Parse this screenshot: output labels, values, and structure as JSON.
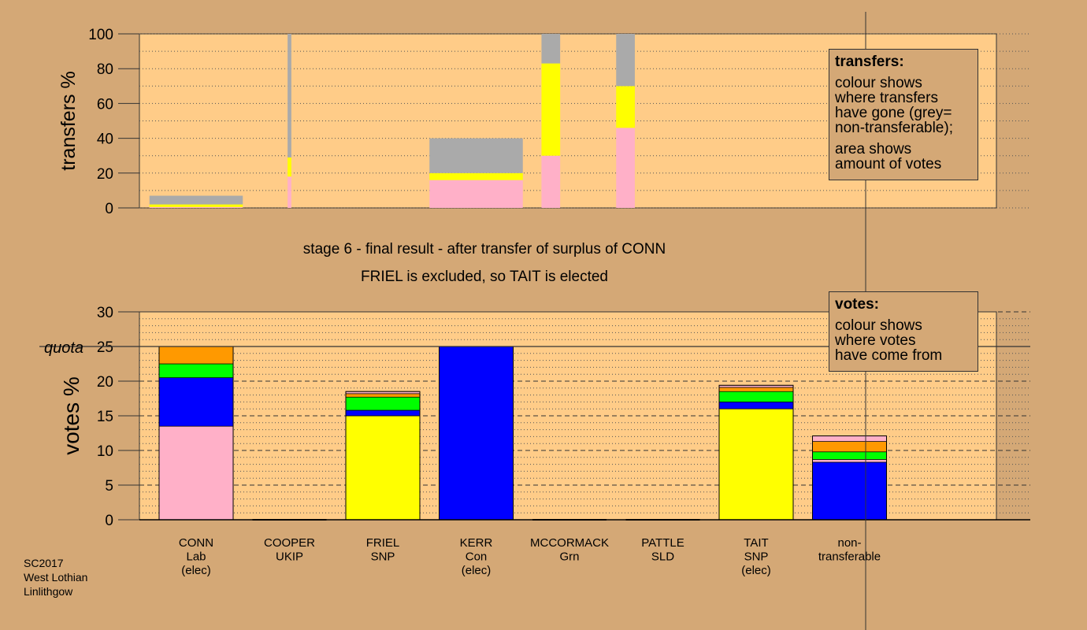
{
  "captions": {
    "stage": "stage 6 - final result - after transfer of surplus of CONN",
    "result": "FRIEL is excluded, so TAIT is elected"
  },
  "legends": {
    "transfers": {
      "title": "transfers:",
      "lines1": [
        "colour shows",
        "where transfers",
        "have gone (grey=",
        "non-transferable);"
      ],
      "lines2": [
        "area shows",
        "amount of votes"
      ]
    },
    "votes": {
      "title": "votes:",
      "lines": [
        "colour shows",
        "where votes",
        "have come from"
      ]
    }
  },
  "footer": {
    "line1": "SC2017",
    "line2": "West Lothian",
    "line3": "Linlithgow"
  },
  "colors": {
    "background": "#d4a876",
    "plot_area": "#ffcc88",
    "pink": "#ffb0c8",
    "blue": "#0000ff",
    "green": "#00ff00",
    "yellow": "#ffff00",
    "orange": "#ff9900",
    "grey": "#aaaaaa"
  },
  "chart_data": [
    {
      "type": "bar",
      "name": "transfers",
      "ylabel": "transfers %",
      "ylim": [
        0,
        100
      ],
      "yticks": [
        0,
        20,
        40,
        60,
        80,
        100
      ],
      "bars": [
        {
          "candidate": "CONN",
          "span": [
            0.5,
            1.5
          ],
          "segments": [
            {
              "color": "pink",
              "value": 0.5
            },
            {
              "color": "yellow",
              "value": 1.5
            },
            {
              "color": "grey",
              "value": 5
            }
          ]
        },
        {
          "candidate": "COOPER",
          "span": [
            1.98,
            2.02
          ],
          "segments": [
            {
              "color": "pink",
              "value": 18
            },
            {
              "color": "yellow",
              "value": 11
            },
            {
              "color": "grey",
              "value": 71
            }
          ]
        },
        {
          "candidate": "KERR",
          "span": [
            3.5,
            4.5
          ],
          "segments": [
            {
              "color": "pink",
              "value": 16
            },
            {
              "color": "yellow",
              "value": 4
            },
            {
              "color": "grey",
              "value": 20
            }
          ]
        },
        {
          "candidate": "MCCORMACK",
          "span": [
            4.7,
            4.9
          ],
          "segments": [
            {
              "color": "pink",
              "value": 30
            },
            {
              "color": "yellow",
              "value": 53
            },
            {
              "color": "grey",
              "value": 17
            }
          ]
        },
        {
          "candidate": "PATTLE",
          "span": [
            5.5,
            5.7
          ],
          "segments": [
            {
              "color": "pink",
              "value": 46
            },
            {
              "color": "yellow",
              "value": 24
            },
            {
              "color": "grey",
              "value": 30
            }
          ]
        }
      ]
    },
    {
      "type": "bar",
      "name": "votes",
      "ylabel": "votes %",
      "ylim": [
        0,
        30
      ],
      "yticks": [
        0,
        5,
        10,
        15,
        20,
        25,
        30
      ],
      "quota": 25,
      "quota_label": "quota",
      "categories": [
        {
          "name": "CONN",
          "party": "Lab",
          "status": "(elec)"
        },
        {
          "name": "COOPER",
          "party": "UKIP",
          "status": ""
        },
        {
          "name": "FRIEL",
          "party": "SNP",
          "status": ""
        },
        {
          "name": "KERR",
          "party": "Con",
          "status": "(elec)"
        },
        {
          "name": "MCCORMACK",
          "party": "Grn",
          "status": ""
        },
        {
          "name": "PATTLE",
          "party": "SLD",
          "status": ""
        },
        {
          "name": "TAIT",
          "party": "SNP",
          "status": "(elec)"
        },
        {
          "name": "non-",
          "party": "transferable",
          "status": ""
        }
      ],
      "stacks": [
        [
          {
            "color": "pink",
            "value": 13.5
          },
          {
            "color": "blue",
            "value": 7
          },
          {
            "color": "green",
            "value": 2
          },
          {
            "color": "orange",
            "value": 2.5
          }
        ],
        [],
        [
          {
            "color": "yellow",
            "value": 15
          },
          {
            "color": "blue",
            "value": 0.8
          },
          {
            "color": "green",
            "value": 1.9
          },
          {
            "color": "orange",
            "value": 0.5
          },
          {
            "color": "pink",
            "value": 0.3
          }
        ],
        [
          {
            "color": "blue",
            "value": 25
          }
        ],
        [],
        [],
        [
          {
            "color": "yellow",
            "value": 16
          },
          {
            "color": "blue",
            "value": 1
          },
          {
            "color": "green",
            "value": 1.5
          },
          {
            "color": "orange",
            "value": 0.6
          },
          {
            "color": "pink",
            "value": 0.3
          }
        ],
        [
          {
            "color": "blue",
            "value": 8.3
          },
          {
            "color": "pink",
            "value": 0.4
          },
          {
            "color": "green",
            "value": 1.1
          },
          {
            "color": "orange",
            "value": 1.5
          },
          {
            "color": "pink",
            "value": 0.8
          }
        ]
      ]
    }
  ]
}
